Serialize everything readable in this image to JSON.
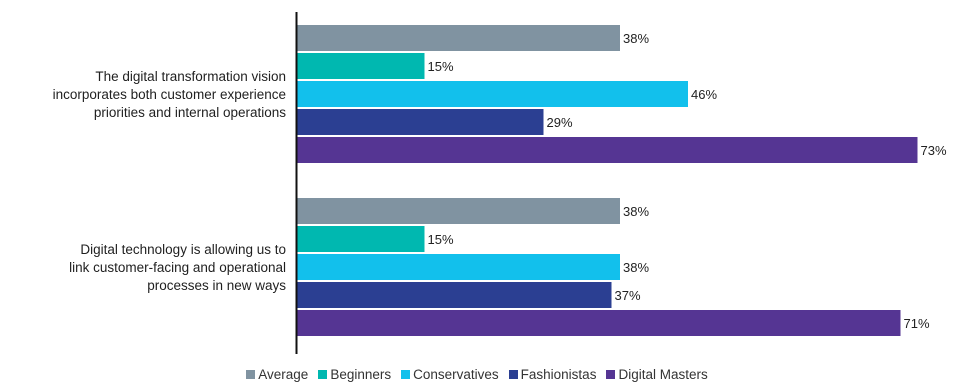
{
  "chart_data": {
    "type": "bar",
    "orientation": "horizontal",
    "title": "",
    "xlabel": "",
    "ylabel": "",
    "xlim": [
      0,
      100
    ],
    "grid": false,
    "legend_position": "bottom",
    "categories": [
      [
        "The digital transformation vision",
        "incorporates both customer experience",
        "priorities and internal operations"
      ],
      [
        "Digital technology is allowing us to",
        "link customer-facing and operational",
        "processes in new ways"
      ]
    ],
    "series": [
      {
        "name": "Average",
        "color": "#8093a1",
        "values": [
          38,
          38
        ],
        "labels": [
          "38%",
          "38%"
        ]
      },
      {
        "name": "Beginners",
        "color": "#00b8b0",
        "values": [
          15,
          15
        ],
        "labels": [
          "15%",
          "15%"
        ]
      },
      {
        "name": "Conservatives",
        "color": "#12c0ec",
        "values": [
          46,
          38
        ],
        "labels": [
          "46%",
          "38%"
        ]
      },
      {
        "name": "Fashionistas",
        "color": "#2b3f92",
        "values": [
          29,
          37
        ],
        "labels": [
          "29%",
          "37%"
        ]
      },
      {
        "name": "Digital Masters",
        "color": "#553593",
        "values": [
          73,
          71
        ],
        "labels": [
          "73%",
          "71%"
        ]
      }
    ]
  }
}
